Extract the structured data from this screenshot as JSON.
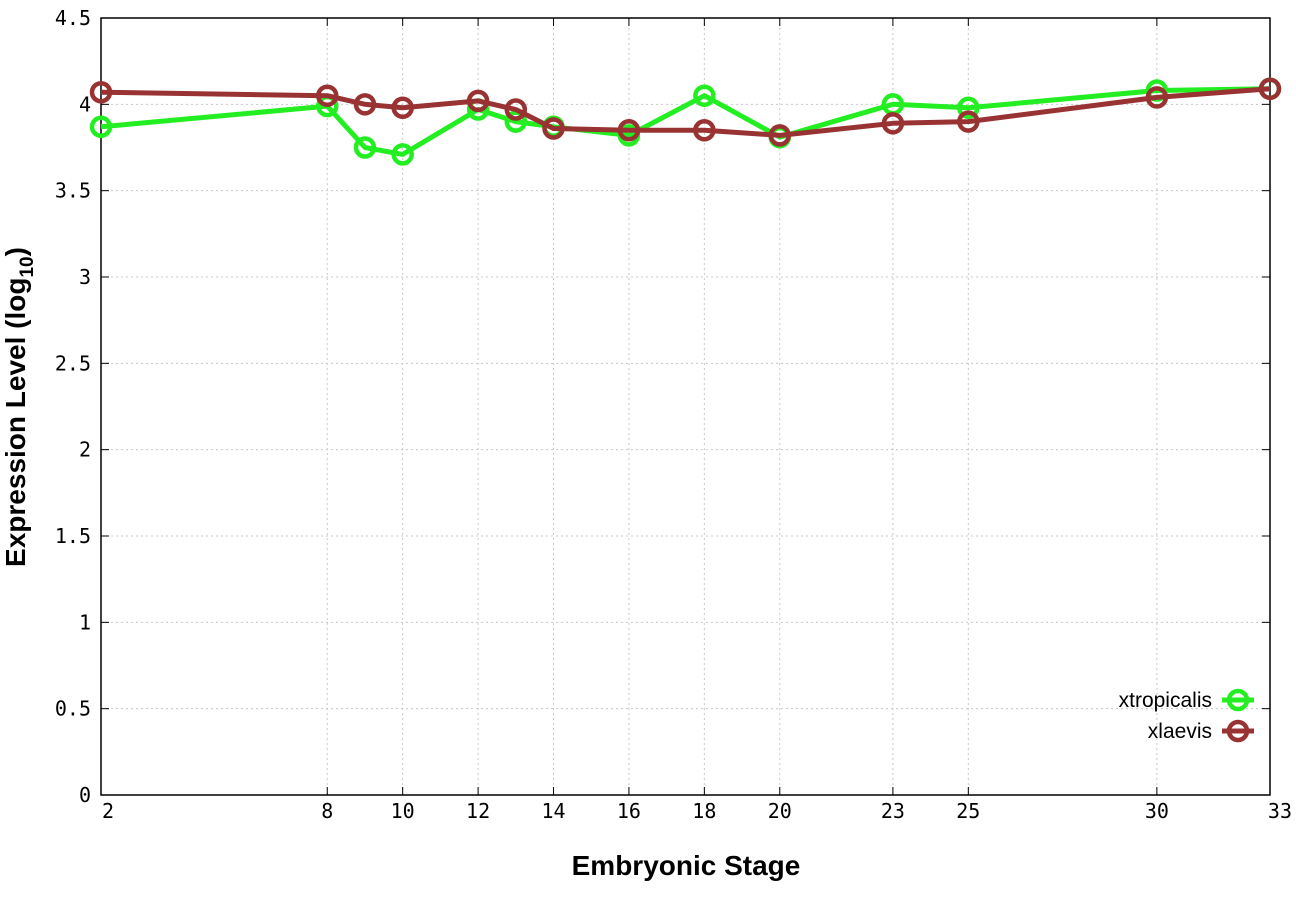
{
  "chart_data": {
    "type": "line",
    "xlabel": "Embryonic Stage",
    "ylabel": "Expression Level (log",
    "ylabel_subscript": "10",
    "ylabel_close": ")",
    "x_ticks": [
      2,
      8,
      10,
      12,
      14,
      16,
      18,
      20,
      23,
      25,
      30,
      33
    ],
    "y_ticks": [
      "0",
      "0.5",
      "1",
      "1.5",
      "2",
      "2.5",
      "3",
      "3.5",
      "4",
      "4.5"
    ],
    "x_stages": [
      2,
      8,
      9,
      10,
      12,
      13,
      14,
      16,
      18,
      20,
      23,
      25,
      30,
      33
    ],
    "ylim": [
      0,
      4.5
    ],
    "grid": true,
    "legend_position": "bottom-right",
    "series": [
      {
        "name": "xtropicalis",
        "color": "#22ee22",
        "values": [
          3.87,
          3.99,
          3.75,
          3.71,
          3.97,
          3.9,
          3.87,
          3.82,
          4.05,
          3.81,
          4.0,
          3.98,
          4.08,
          4.09
        ]
      },
      {
        "name": "xlaevis",
        "color": "#993333",
        "values": [
          4.07,
          4.05,
          4.0,
          3.98,
          4.02,
          3.97,
          3.86,
          3.85,
          3.85,
          3.82,
          3.89,
          3.9,
          4.04,
          4.09
        ]
      }
    ]
  }
}
